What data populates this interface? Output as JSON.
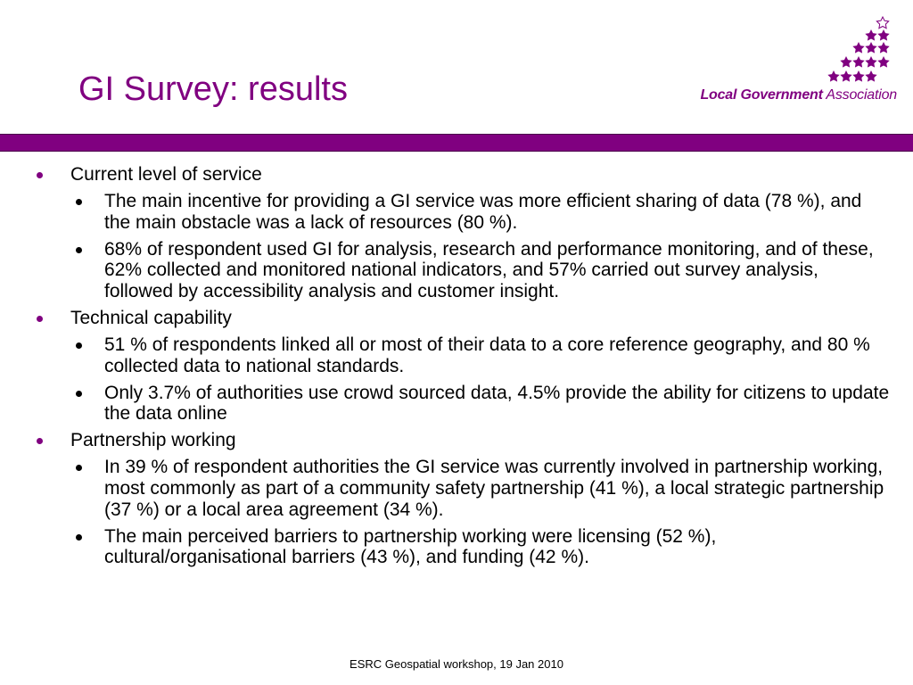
{
  "slide": {
    "title": "GI Survey: results",
    "logo": {
      "name_bold": "Local Government",
      "name_rest": " Association",
      "icon": "stars-icon"
    },
    "sections": [
      {
        "heading": "Current level of service",
        "bullets": [
          "The main incentive for providing a GI service was more efficient sharing of data (78 %), and the main obstacle was a lack of resources (80 %).",
          "68% of respondent used GI for analysis, research and performance monitoring, and of these, 62% collected and monitored national indicators, and 57% carried out survey analysis, followed by accessibility analysis and customer insight."
        ]
      },
      {
        "heading": "Technical capability",
        "bullets": [
          "51 % of respondents linked all or most of their data to a core reference geography, and 80 % collected data to national standards.",
          "Only 3.7% of authorities use crowd sourced data, 4.5% provide the ability for citizens to update the data online"
        ]
      },
      {
        "heading": "Partnership working",
        "bullets": [
          "In 39 % of respondent authorities the GI service was currently involved in partnership working, most commonly as part of a community safety partnership (41 %), a local strategic partnership (37 %) or a local area agreement (34 %).",
          "The main perceived barriers to partnership working were licensing (52 %), cultural/organisational barriers (43 %), and funding (42 %)."
        ]
      }
    ],
    "footer": "ESRC Geospatial workshop, 19 Jan 2010"
  },
  "colors": {
    "accent": "#800080",
    "text": "#000000",
    "background": "#ffffff"
  }
}
